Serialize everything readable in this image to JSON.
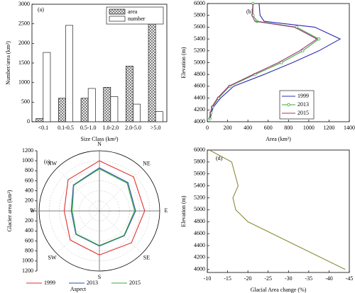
{
  "chart_data": [
    {
      "type": "bar",
      "panel_label": "(a)",
      "x_label": "Size Class (km²)",
      "y_label": "Number/area (km²)",
      "categories": [
        "<0.1",
        "0.1-0.5",
        "0.5-1.0",
        "1.0-2.0",
        "2.0-5.0",
        ">5.0"
      ],
      "series": [
        {
          "name": "area",
          "color": "#555555",
          "pattern": "crosshatch",
          "values": [
            80,
            600,
            600,
            880,
            1420,
            2880
          ]
        },
        {
          "name": "number",
          "color": "#ffffff",
          "values": [
            1770,
            2460,
            850,
            640,
            450,
            260
          ]
        }
      ],
      "ylim": [
        0,
        3000
      ],
      "yticks": [
        0,
        500,
        1000,
        1500,
        2000,
        2500,
        3000
      ],
      "legend": "upper-right"
    },
    {
      "type": "line",
      "panel_label": "(b)",
      "x_label": "Area (km²)",
      "y_label": "Elevation (m)",
      "y": [
        4050,
        4150,
        4250,
        4400,
        4600,
        4800,
        5000,
        5200,
        5400,
        5600,
        5700,
        5800,
        6000
      ],
      "series": [
        {
          "name": "1999",
          "color": "#2b2bb0",
          "values": [
            30,
            40,
            60,
            130,
            260,
            560,
            840,
            1100,
            1310,
            1060,
            560,
            520,
            510
          ]
        },
        {
          "name": "2013",
          "color": "#3aa83a",
          "marker": "circle",
          "values": [
            25,
            35,
            50,
            110,
            220,
            470,
            730,
            940,
            1100,
            880,
            490,
            450,
            450
          ]
        },
        {
          "name": "2015",
          "color": "#a0307a",
          "values": [
            20,
            30,
            45,
            100,
            210,
            450,
            700,
            910,
            1080,
            860,
            470,
            440,
            450
          ]
        }
      ],
      "xlim": [
        0,
        1400
      ],
      "xticks": [
        0,
        200,
        400,
        600,
        800,
        1000,
        1200,
        1400
      ],
      "ylim": [
        4000,
        6000
      ],
      "yticks": [
        4000,
        4200,
        4400,
        4600,
        4800,
        5000,
        5200,
        5400,
        5600,
        5800,
        6000
      ],
      "legend": "lower-right"
    },
    {
      "type": "radar",
      "panel_label": "(c)",
      "x_label": "Aspect",
      "y_label": "Glacier area (km²)",
      "categories": [
        "N",
        "NE",
        "E",
        "SE",
        "S",
        "SW",
        "W",
        "NW"
      ],
      "series": [
        {
          "name": "1999",
          "color": "#e03030",
          "values": [
            1000,
            960,
            900,
            900,
            880,
            820,
            700,
            880
          ]
        },
        {
          "name": "2013",
          "color": "#2b4fb0",
          "values": [
            860,
            800,
            720,
            700,
            700,
            660,
            560,
            730
          ]
        },
        {
          "name": "2015",
          "color": "#3aa83a",
          "values": [
            840,
            780,
            700,
            690,
            690,
            650,
            540,
            720
          ]
        }
      ],
      "rlim": [
        0,
        1200
      ],
      "rticks": [
        0,
        200,
        400,
        600,
        800,
        1000,
        1200
      ],
      "legend": "bottom"
    },
    {
      "type": "line",
      "panel_label": "(d)",
      "x_label": "Glacial Area change (%)",
      "y_label": "Elevation (m)",
      "y": [
        6000,
        5800,
        5400,
        5200,
        5000,
        4800,
        4000
      ],
      "series": [
        {
          "color": "#8b8b3a",
          "values": [
            -10.5,
            -16,
            -17.6,
            -16.3,
            -17,
            -20,
            -44
          ]
        }
      ],
      "xlim": [
        -10,
        -45
      ],
      "xticks": [
        -10,
        -15,
        -20,
        -25,
        -30,
        -35,
        -40,
        -45
      ],
      "ylim": [
        3950,
        6000
      ],
      "yticks": [
        4000,
        4200,
        4400,
        4600,
        4800,
        5000,
        5200,
        5400,
        5600,
        5800,
        6000
      ]
    }
  ]
}
